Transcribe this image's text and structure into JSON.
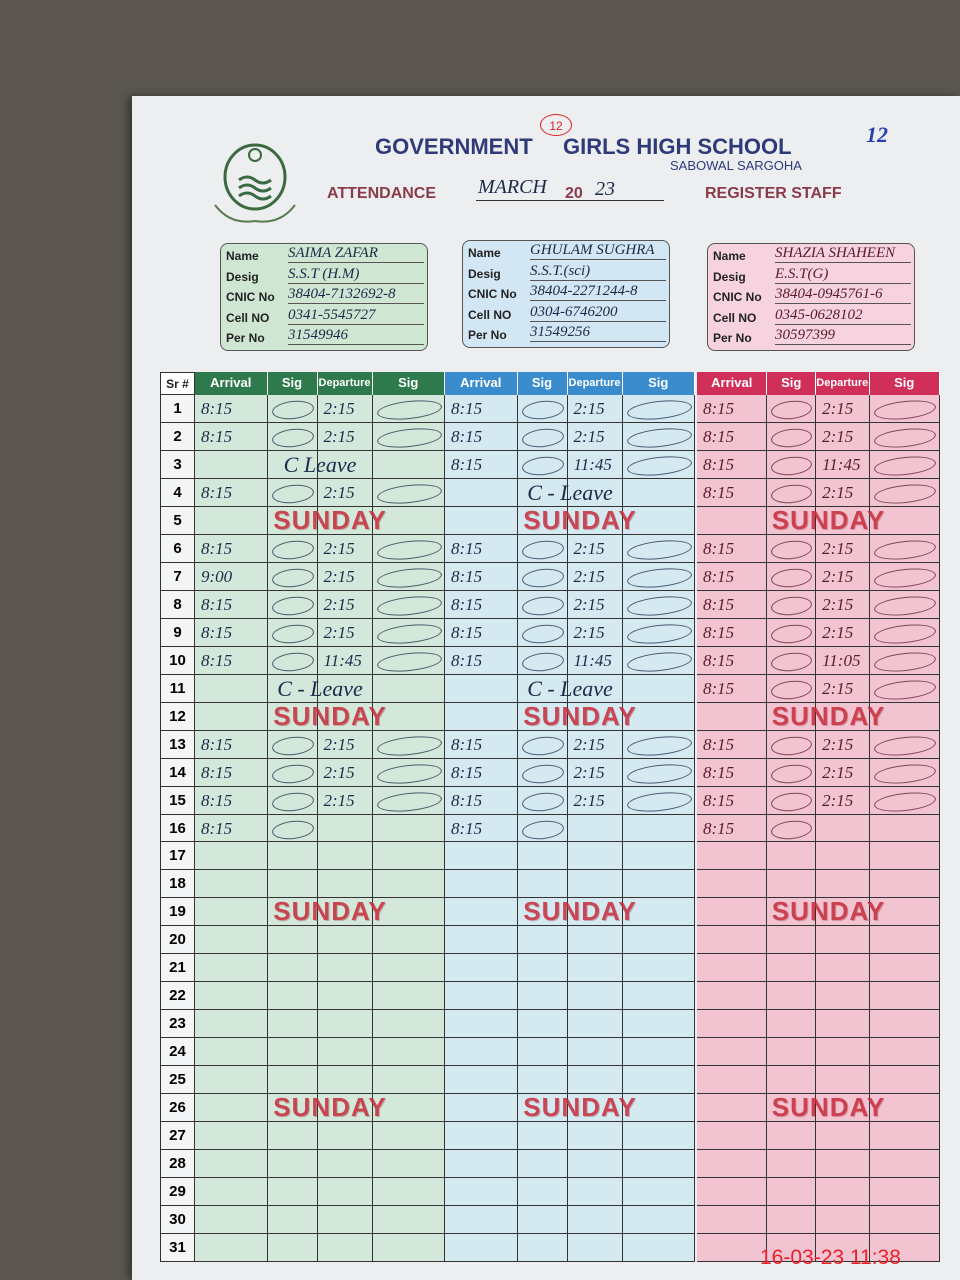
{
  "header": {
    "title": "GOVERNMENT",
    "badge": "12",
    "school": "GIRLS HIGH SCHOOL",
    "location": "SABOWAL SARGOHA",
    "attendance": "ATTENDANCE",
    "month": "MARCH",
    "year_prefix": "20",
    "year_suffix": "23",
    "register": "REGISTER STAFF",
    "corner_mark": "12"
  },
  "card_labels": [
    "Name",
    "Desig",
    "CNIC No",
    "Cell NO",
    "Per No"
  ],
  "staff": [
    {
      "info": [
        "SAIMA ZAFAR",
        "S.S.T (H.M)",
        "38404-7132692-8",
        "0341-5545727",
        "31549946"
      ],
      "days": [
        [
          "8:15",
          "2:15"
        ],
        [
          "8:15",
          "2:15"
        ],
        "C Leave",
        [
          "8:15",
          "2:15"
        ],
        "SUNDAY",
        [
          "8:15",
          "2:15"
        ],
        [
          "9:00",
          "2:15"
        ],
        [
          "8:15",
          "2:15"
        ],
        [
          "8:15",
          "2:15"
        ],
        [
          "8:15",
          "11:45"
        ],
        "C - Leave",
        "SUNDAY",
        [
          "8:15",
          "2:15"
        ],
        [
          "8:15",
          "2:15"
        ],
        [
          "8:15",
          "2:15"
        ],
        [
          "8:15",
          null
        ],
        null,
        null,
        "SUNDAY",
        null,
        null,
        null,
        null,
        null,
        null,
        "SUNDAY",
        null,
        null,
        null,
        null,
        null
      ]
    },
    {
      "info": [
        "GHULAM SUGHRA",
        "S.S.T.(sci)",
        "38404-2271244-8",
        "0304-6746200",
        "31549256"
      ],
      "days": [
        [
          "8:15",
          "2:15"
        ],
        [
          "8:15",
          "2:15"
        ],
        [
          "8:15",
          "11:45"
        ],
        "C - Leave",
        "SUNDAY",
        [
          "8:15",
          "2:15"
        ],
        [
          "8:15",
          "2:15"
        ],
        [
          "8:15",
          "2:15"
        ],
        [
          "8:15",
          "2:15"
        ],
        [
          "8:15",
          "11:45"
        ],
        "C - Leave",
        "SUNDAY",
        [
          "8:15",
          "2:15"
        ],
        [
          "8:15",
          "2:15"
        ],
        [
          "8:15",
          "2:15"
        ],
        [
          "8:15",
          null
        ],
        null,
        null,
        "SUNDAY",
        null,
        null,
        null,
        null,
        null,
        null,
        "SUNDAY",
        null,
        null,
        null,
        null,
        null
      ]
    },
    {
      "info": [
        "SHAZIA SHAHEEN",
        "E.S.T(G)",
        "38404-0945761-6",
        "0345-0628102",
        "30597399"
      ],
      "days": [
        [
          "8:15",
          "2:15"
        ],
        [
          "8:15",
          "2:15"
        ],
        [
          "8:15",
          "11:45"
        ],
        [
          "8:15",
          "2:15"
        ],
        "SUNDAY",
        [
          "8:15",
          "2:15"
        ],
        [
          "8:15",
          "2:15"
        ],
        [
          "8:15",
          "2:15"
        ],
        [
          "8:15",
          "2:15"
        ],
        [
          "8:15",
          "11:05"
        ],
        [
          "8:15",
          "2:15"
        ],
        "SUNDAY",
        [
          "8:15",
          "2:15"
        ],
        [
          "8:15",
          "2:15"
        ],
        [
          "8:15",
          "2:15"
        ],
        [
          "8:15",
          null
        ],
        null,
        null,
        "SUNDAY",
        null,
        null,
        null,
        null,
        null,
        null,
        "SUNDAY",
        null,
        null,
        null,
        null,
        null
      ]
    }
  ],
  "table": {
    "sr_header": "Sr #",
    "headers": [
      "Arrival",
      "Sig",
      "Departure",
      "Sig"
    ],
    "rows": [
      1,
      2,
      3,
      4,
      5,
      6,
      7,
      8,
      9,
      10,
      11,
      12,
      13,
      14,
      15,
      16,
      17,
      18,
      19,
      20,
      21,
      22,
      23,
      24,
      25,
      26,
      27,
      28,
      29,
      30,
      31
    ]
  },
  "timestamp": "16-03-23  11:38"
}
